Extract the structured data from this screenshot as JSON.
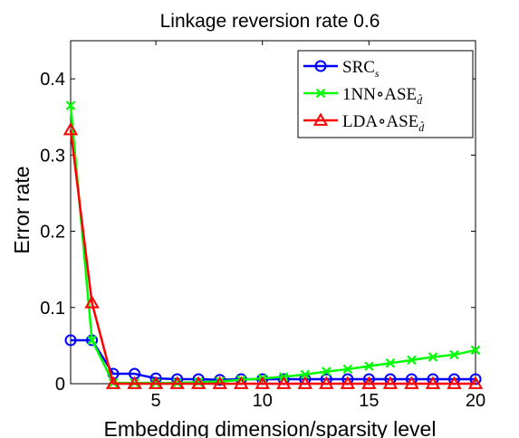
{
  "chart_data": {
    "type": "line",
    "title": "Linkage reversion rate 0.6",
    "xlabel": "Embedding dimension/sparsity level",
    "ylabel": "Error rate",
    "xlim": [
      1,
      20
    ],
    "ylim": [
      0,
      0.45
    ],
    "xticks": [
      5,
      10,
      15,
      20
    ],
    "yticks": [
      0,
      0.1,
      0.2,
      0.3,
      0.4
    ],
    "xtick_labels": [
      "5",
      "10",
      "15",
      "20"
    ],
    "ytick_labels": [
      "0",
      "0.1",
      "0.2",
      "0.3",
      "0.4"
    ],
    "grid": false,
    "legend_position": "top-right",
    "x": [
      1,
      2,
      3,
      4,
      5,
      6,
      7,
      8,
      9,
      10,
      11,
      12,
      13,
      14,
      15,
      16,
      17,
      18,
      19,
      20
    ],
    "series": [
      {
        "name": "SRC",
        "name_sub": "s",
        "color": "#0000ff",
        "marker": "circle",
        "values": [
          0.057,
          0.057,
          0.013,
          0.013,
          0.007,
          0.006,
          0.006,
          0.005,
          0.006,
          0.006,
          0.006,
          0.006,
          0.006,
          0.006,
          0.006,
          0.006,
          0.006,
          0.006,
          0.006,
          0.006
        ]
      },
      {
        "name": "1NN∘ASE",
        "name_sub": "d̂",
        "color": "#00ff00",
        "marker": "x",
        "values": [
          0.365,
          0.057,
          0.001,
          0.001,
          0.001,
          0.001,
          0.002,
          0.003,
          0.005,
          0.007,
          0.009,
          0.012,
          0.016,
          0.019,
          0.023,
          0.027,
          0.031,
          0.035,
          0.038,
          0.044
        ]
      },
      {
        "name": "LDA∘ASE",
        "name_sub": "d̂",
        "color": "#ff0000",
        "marker": "triangle",
        "values": [
          0.333,
          0.106,
          0.0,
          0.0,
          0.0,
          0.0,
          0.0,
          0.0,
          0.0,
          0.0,
          0.0,
          0.0,
          0.0,
          0.0,
          0.0,
          0.0,
          0.0,
          0.0,
          0.0,
          0.0
        ]
      }
    ]
  }
}
